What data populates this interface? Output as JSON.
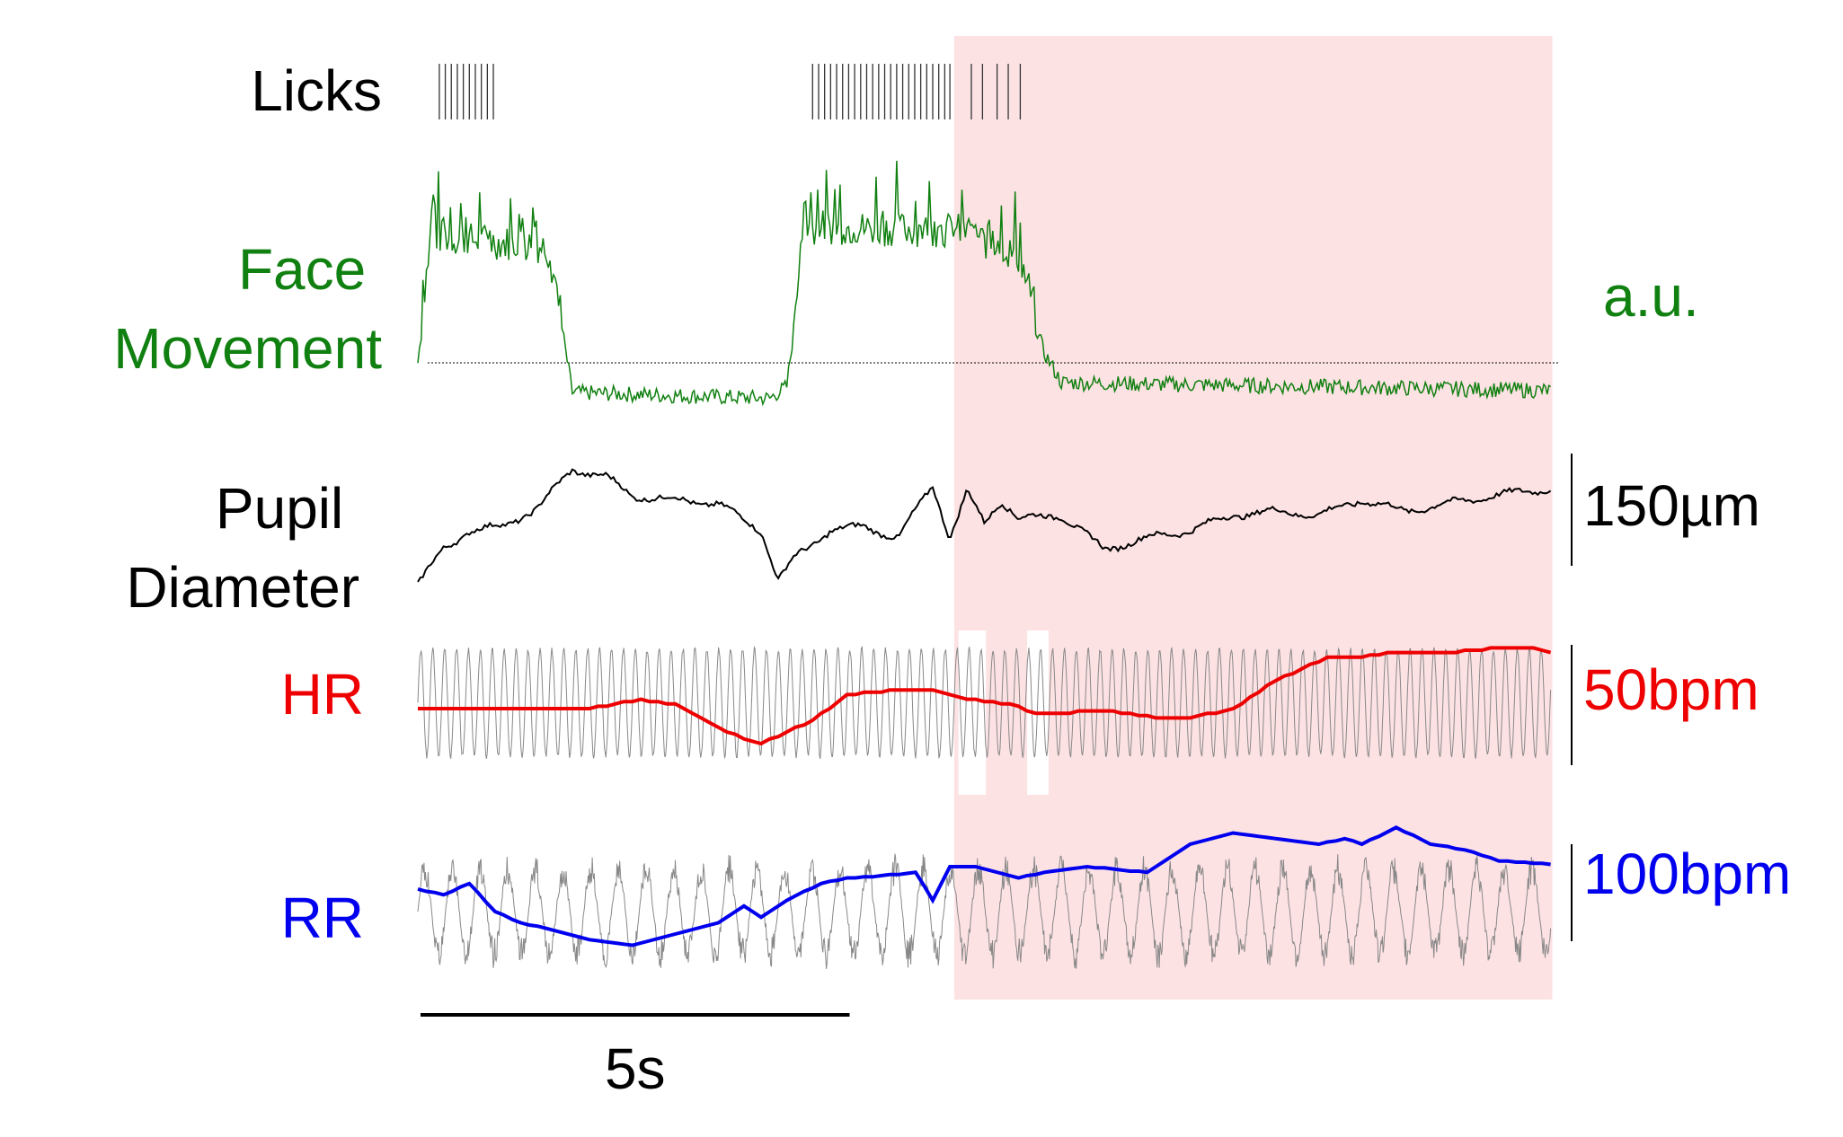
{
  "chart_data": {
    "type": "line",
    "shared_time_axis": {
      "units": "s",
      "duration": 13.2,
      "scale_bar_length": 5,
      "scale_bar_label": "5s"
    },
    "highlight_window": {
      "start": 6.25,
      "end": 13.2,
      "color": "#fde2e4"
    },
    "artifact_gaps": [
      {
        "start": 6.3,
        "end": 6.62
      },
      {
        "start": 7.1,
        "end": 7.35
      }
    ],
    "colors": {
      "face": "#108010",
      "pupil": "#000000",
      "hr": "#ee0000",
      "rr": "#0000ee",
      "raw": "#888888",
      "licks": "#333333"
    },
    "panels": [
      {
        "id": "licks",
        "label": "Licks",
        "label_color": "#000000",
        "scale_label": "",
        "lick_times_s": [
          0.25,
          0.32,
          0.39,
          0.46,
          0.53,
          0.6,
          0.67,
          0.74,
          0.81,
          0.88,
          4.6,
          4.67,
          4.74,
          4.81,
          4.88,
          4.95,
          5.02,
          5.09,
          5.16,
          5.23,
          5.3,
          5.37,
          5.44,
          5.51,
          5.58,
          5.65,
          5.72,
          5.79,
          5.86,
          5.93,
          6.0,
          6.07,
          6.14,
          6.2,
          6.45,
          6.58,
          6.75,
          6.88,
          7.02
        ]
      },
      {
        "id": "face",
        "label_lines": [
          "Face",
          "Movement"
        ],
        "label_color": "#108010",
        "scale_label": "a.u.",
        "series": [
          {
            "values_t": [
              0,
              0.15,
              1.5,
              1.65,
              1.8,
              4.1,
              4.3,
              4.5,
              6.3,
              7.0,
              7.3,
              7.5,
              13.2
            ],
            "values": [
              0.0,
              0.55,
              0.5,
              0.25,
              -0.15,
              -0.18,
              -0.12,
              0.6,
              0.58,
              0.45,
              0.05,
              -0.1,
              -0.14
            ]
          }
        ],
        "baseline": 0
      },
      {
        "id": "pupil",
        "label_lines": [
          "Pupil",
          "Diameter"
        ],
        "label_color": "#000000",
        "scale_label": "150µm",
        "series": [
          {
            "t": [
              0,
              0.3,
              0.6,
              1.0,
              1.4,
              1.8,
              2.2,
              2.5,
              3.0,
              3.5,
              4.0,
              4.2,
              4.4,
              4.8,
              5.2,
              5.6,
              6.0,
              6.2,
              6.4,
              6.6,
              6.8,
              7.0,
              7.5,
              8.0,
              8.5,
              9.0,
              9.5,
              10.0,
              10.5,
              11.0,
              11.5,
              12.0,
              12.5,
              13.2
            ],
            "values": [
              0,
              45,
              70,
              75,
              100,
              150,
              140,
              115,
              110,
              105,
              70,
              5,
              35,
              70,
              75,
              60,
              130,
              60,
              120,
              80,
              110,
              85,
              90,
              45,
              60,
              70,
              90,
              95,
              90,
              110,
              95,
              105,
              115,
              125
            ]
          }
        ]
      },
      {
        "id": "hr",
        "label": "HR",
        "label_color": "#ee0000",
        "scale_label": "50bpm",
        "series": [
          {
            "t": [
              0,
              1.0,
              2.0,
              2.6,
              3.0,
              3.6,
              4.0,
              4.6,
              5.0,
              5.6,
              6.0,
              6.4,
              6.9,
              7.2,
              8.0,
              8.6,
              9.0,
              9.5,
              10.0,
              10.6,
              11.0,
              11.3,
              12.0,
              12.6,
              13.0,
              13.2
            ],
            "values": [
              0,
              0,
              0,
              4,
              2,
              -10,
              -15,
              -5,
              6,
              8,
              8,
              4,
              2,
              -2,
              -1,
              -4,
              -4,
              0,
              12,
              22,
              22,
              24,
              24,
              26,
              26,
              24
            ]
          }
        ]
      },
      {
        "id": "rr",
        "label": "RR",
        "label_color": "#0000ee",
        "scale_label": "100bpm",
        "series": [
          {
            "t": [
              0,
              0.3,
              0.6,
              0.9,
              1.2,
              1.5,
              2.0,
              2.5,
              3.0,
              3.5,
              3.8,
              4.0,
              4.3,
              4.7,
              5.0,
              5.4,
              5.8,
              6.0,
              6.2,
              6.5,
              7.0,
              7.3,
              7.8,
              8.5,
              9.0,
              9.5,
              10.0,
              10.5,
              10.8,
              11.0,
              11.4,
              11.8,
              12.2,
              12.6,
              13.2
            ],
            "values": [
              0,
              -5,
              5,
              -20,
              -30,
              -35,
              -45,
              -50,
              -40,
              -30,
              -15,
              -25,
              -10,
              5,
              10,
              12,
              15,
              -10,
              20,
              20,
              10,
              15,
              20,
              15,
              40,
              50,
              45,
              40,
              45,
              40,
              55,
              40,
              35,
              25,
              22
            ]
          }
        ]
      }
    ]
  }
}
